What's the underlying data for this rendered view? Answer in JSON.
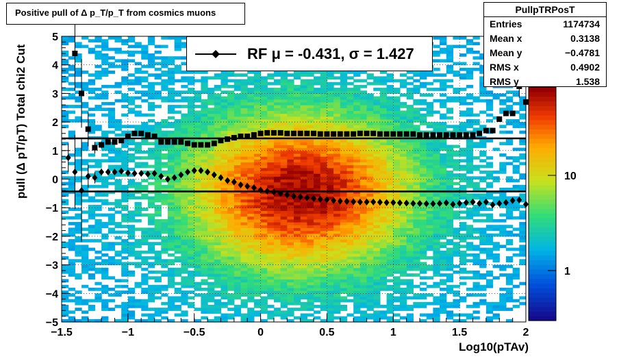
{
  "chart_data": {
    "type": "heatmap",
    "title": "Positive pull of Δ p_T/p_T from cosmics muons",
    "xlabel": "Log10(pTAv)",
    "ylabel": "pull (Δ pT/pT)  Total chi2 Cut",
    "xlim": [
      -1.5,
      2
    ],
    "ylim": [
      -5,
      5
    ],
    "x_ticks": [
      "−1.5",
      "−1",
      "−0.5",
      "0",
      "0.5",
      "1",
      "1.5",
      "2"
    ],
    "y_ticks": [
      "−5",
      "−4",
      "−3",
      "−2",
      "−1",
      "0",
      "1",
      "2",
      "3",
      "4",
      "5"
    ],
    "z_ticks": [
      "1",
      "10"
    ],
    "z_scale": "log",
    "grid": true,
    "stats": {
      "name": "PullpTRPosT",
      "rows": [
        {
          "label": "Entries",
          "value": "1174734"
        },
        {
          "label": "Mean x",
          "value": "0.3138"
        },
        {
          "label": "Mean y",
          "value": "−0.4781"
        },
        {
          "label": "RMS x",
          "value": "0.4902"
        },
        {
          "label": "RMS y",
          "value": "1.538"
        }
      ]
    },
    "legend": {
      "label": "RF μ = -0.431, σ =   1.427",
      "placement": "top-center"
    },
    "hlines": [
      {
        "name": "mean",
        "y": -0.431
      },
      {
        "name": "sigma",
        "y": 1.427
      }
    ],
    "series": [
      {
        "name": "mean",
        "marker": "diamond",
        "x": [
          -1.45,
          -1.4,
          -1.35,
          -1.3,
          -1.25,
          -1.2,
          -1.15,
          -1.1,
          -1.05,
          -1.0,
          -0.95,
          -0.9,
          -0.85,
          -0.8,
          -0.75,
          -0.7,
          -0.65,
          -0.6,
          -0.55,
          -0.5,
          -0.45,
          -0.4,
          -0.35,
          -0.3,
          -0.25,
          -0.2,
          -0.15,
          -0.1,
          -0.05,
          0.0,
          0.05,
          0.1,
          0.15,
          0.2,
          0.25,
          0.3,
          0.35,
          0.4,
          0.45,
          0.5,
          0.55,
          0.6,
          0.65,
          0.7,
          0.75,
          0.8,
          0.85,
          0.9,
          0.95,
          1.0,
          1.05,
          1.1,
          1.15,
          1.2,
          1.25,
          1.3,
          1.35,
          1.4,
          1.45,
          1.5,
          1.55,
          1.6,
          1.65,
          1.7,
          1.75,
          1.8,
          1.85,
          1.9,
          1.95,
          2.0
        ],
        "y": [
          0.75,
          0.25,
          -0.4,
          0.1,
          0.05,
          0.25,
          0.25,
          0.25,
          0.28,
          0.22,
          0.2,
          0.2,
          0.18,
          0.2,
          0.1,
          0.0,
          0.05,
          0.15,
          0.25,
          0.3,
          0.3,
          0.25,
          0.15,
          0.05,
          -0.05,
          -0.1,
          -0.2,
          -0.25,
          -0.3,
          -0.38,
          -0.42,
          -0.45,
          -0.5,
          -0.55,
          -0.6,
          -0.62,
          -0.65,
          -0.68,
          -0.7,
          -0.72,
          -0.75,
          -0.77,
          -0.78,
          -0.79,
          -0.8,
          -0.8,
          -0.8,
          -0.81,
          -0.82,
          -0.82,
          -0.83,
          -0.84,
          -0.85,
          -0.85,
          -0.86,
          -0.86,
          -0.85,
          -0.83,
          -0.88,
          -0.85,
          -0.82,
          -0.8,
          -0.85,
          -0.8,
          -0.9,
          -0.85,
          -0.82,
          -0.75,
          -0.73,
          -0.88
        ],
        "yerr": [
          0.5,
          1.3,
          1.8,
          0.4,
          0.2,
          0.12,
          0.1,
          0.08,
          0.06,
          0.05,
          0.05,
          0.05,
          0.05,
          0.05,
          0.05,
          0.05,
          0.05,
          0.05,
          0.05,
          0.05,
          0.05,
          0.05,
          0.05,
          0.05,
          0.05,
          0.05,
          0.05,
          0.05,
          0.05,
          0.05,
          0.05,
          0.05,
          0.05,
          0.05,
          0.05,
          0.05,
          0.05,
          0.05,
          0.05,
          0.05,
          0.05,
          0.05,
          0.05,
          0.05,
          0.05,
          0.05,
          0.05,
          0.05,
          0.05,
          0.05,
          0.05,
          0.05,
          0.05,
          0.05,
          0.05,
          0.05,
          0.05,
          0.05,
          0.05,
          0.05,
          0.05,
          0.05,
          0.05,
          0.05,
          0.05,
          0.05,
          0.06,
          0.08,
          0.1,
          0.15
        ]
      },
      {
        "name": "sigma",
        "marker": "square",
        "x": [
          -1.4,
          -1.35,
          -1.3,
          -1.25,
          -1.2,
          -1.15,
          -1.1,
          -1.05,
          -1.0,
          -0.95,
          -0.9,
          -0.85,
          -0.8,
          -0.75,
          -0.7,
          -0.65,
          -0.6,
          -0.55,
          -0.5,
          -0.45,
          -0.4,
          -0.35,
          -0.3,
          -0.25,
          -0.2,
          -0.15,
          -0.1,
          -0.05,
          0.0,
          0.05,
          0.1,
          0.15,
          0.2,
          0.25,
          0.3,
          0.35,
          0.4,
          0.45,
          0.5,
          0.55,
          0.6,
          0.65,
          0.7,
          0.75,
          0.8,
          0.85,
          0.9,
          0.95,
          1.0,
          1.05,
          1.1,
          1.15,
          1.2,
          1.25,
          1.3,
          1.35,
          1.4,
          1.45,
          1.5,
          1.55,
          1.6,
          1.65,
          1.7,
          1.75,
          1.8,
          1.85,
          1.9,
          1.95,
          2.0
        ],
        "y": [
          4.4,
          3.0,
          1.75,
          1.1,
          1.2,
          1.3,
          1.3,
          1.35,
          1.5,
          1.6,
          1.6,
          1.55,
          1.5,
          1.3,
          1.3,
          1.3,
          1.3,
          1.25,
          1.2,
          1.2,
          1.2,
          1.25,
          1.35,
          1.4,
          1.45,
          1.5,
          1.5,
          1.55,
          1.6,
          1.62,
          1.62,
          1.62,
          1.6,
          1.6,
          1.6,
          1.6,
          1.6,
          1.58,
          1.58,
          1.58,
          1.58,
          1.58,
          1.58,
          1.6,
          1.6,
          1.6,
          1.58,
          1.58,
          1.58,
          1.58,
          1.58,
          1.58,
          1.55,
          1.55,
          1.55,
          1.55,
          1.55,
          1.55,
          1.55,
          1.55,
          1.55,
          1.6,
          1.7,
          1.7,
          2.1,
          2.3,
          2.3,
          3.25,
          2.7
        ],
        "yerr": [
          1.3,
          1.2,
          0.6,
          0.2,
          0.12,
          0.1,
          0.08,
          0.06,
          0.05,
          0.05,
          0.05,
          0.05,
          0.05,
          0.05,
          0.05,
          0.05,
          0.05,
          0.05,
          0.05,
          0.05,
          0.05,
          0.05,
          0.05,
          0.05,
          0.05,
          0.05,
          0.05,
          0.05,
          0.05,
          0.05,
          0.05,
          0.05,
          0.05,
          0.05,
          0.05,
          0.05,
          0.05,
          0.05,
          0.05,
          0.05,
          0.05,
          0.05,
          0.05,
          0.05,
          0.05,
          0.05,
          0.05,
          0.05,
          0.05,
          0.05,
          0.05,
          0.05,
          0.05,
          0.05,
          0.05,
          0.05,
          0.05,
          0.05,
          0.05,
          0.05,
          0.05,
          0.05,
          0.05,
          0.06,
          0.1,
          0.1,
          0.1,
          0.4,
          0.3
        ]
      }
    ]
  }
}
